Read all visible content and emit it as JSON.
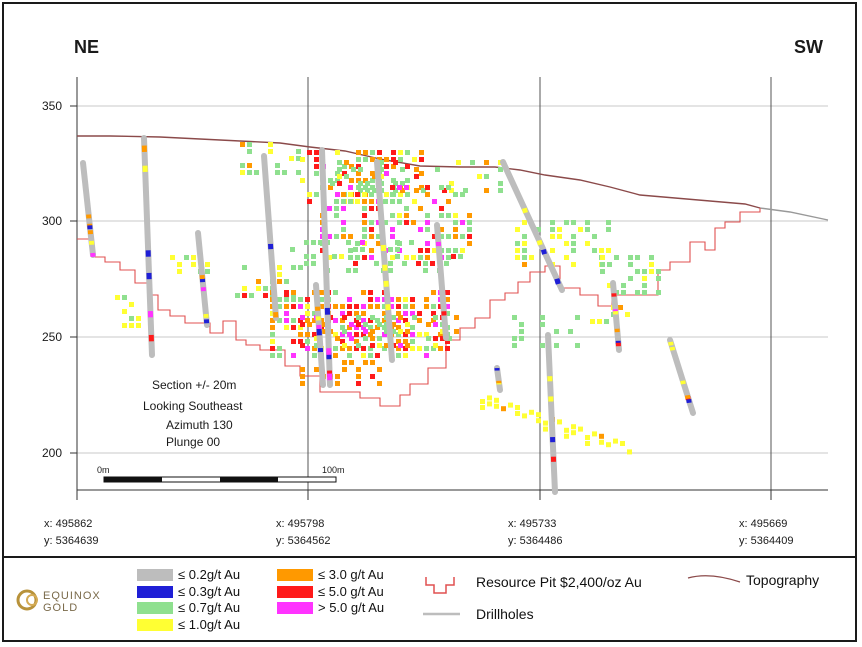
{
  "orientation": {
    "left": "NE",
    "right": "SW"
  },
  "y_axis": {
    "ticks": [
      "350",
      "300",
      "250",
      "200"
    ]
  },
  "x_axis": {
    "ticks": [
      {
        "x": "x: 495862",
        "y": "y: 5364639"
      },
      {
        "x": "x: 495798",
        "y": "y: 5364562"
      },
      {
        "x": "x: 495733",
        "y": "y: 5364486"
      },
      {
        "x": "x: 495669",
        "y": "y: 5364409"
      }
    ]
  },
  "notes": [
    "Section +/- 20m",
    "Looking Southeast",
    "Azimuth 130",
    "Plunge 00"
  ],
  "scale_bar": {
    "start": "0m",
    "end": "100m"
  },
  "logo": {
    "line1": "EQUINOX",
    "line2": "GOLD"
  },
  "legend": {
    "grades": [
      {
        "label": "≤ 0.2g/t Au",
        "color": "#bdbdbd"
      },
      {
        "label": "≤ 0.3g/t Au",
        "color": "#1f1fd6"
      },
      {
        "label": "≤ 0.7g/t Au",
        "color": "#8fe08f"
      },
      {
        "label": "≤ 1.0g/t Au",
        "color": "#ffff33"
      },
      {
        "label": "≤ 3.0 g/t Au",
        "color": "#ff9900"
      },
      {
        "label": "≤ 5.0 g/t Au",
        "color": "#ff1a1a"
      },
      {
        "label": "> 5.0 g/t Au",
        "color": "#ff33ff"
      }
    ],
    "pit_label": "Resource Pit $2,400/oz Au",
    "pit_color": "#e05050",
    "drillholes_label": "Drillholes",
    "drillhole_color": "#bdbdbd",
    "topography_label": "Topography",
    "topography_color": "#8b4a4a"
  }
}
